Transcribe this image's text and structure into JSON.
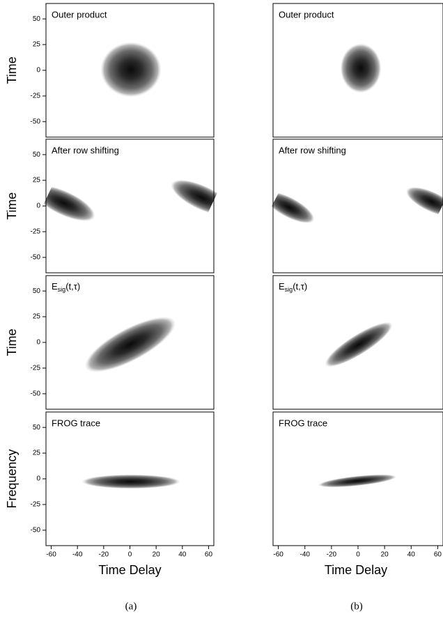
{
  "chart_data": [
    {
      "type": "heatmap",
      "title": "Outer product",
      "ylabel": "Time",
      "xlim": [
        -64,
        64
      ],
      "ylim": [
        -65,
        65
      ],
      "yticks": [
        50,
        25,
        0,
        -25,
        -50
      ]
    },
    {
      "type": "heatmap",
      "title": "Outer product",
      "xlim": [
        -64,
        64
      ],
      "ylim": [
        -65,
        65
      ]
    },
    {
      "type": "heatmap",
      "title": "After row shifting",
      "ylabel": "Time",
      "xlim": [
        -64,
        64
      ],
      "ylim": [
        -65,
        65
      ],
      "yticks": [
        50,
        25,
        0,
        -25,
        -50
      ]
    },
    {
      "type": "heatmap",
      "title": "After row shifting",
      "xlim": [
        -64,
        64
      ],
      "ylim": [
        -65,
        65
      ]
    },
    {
      "type": "heatmap",
      "title": [
        "E",
        "sig",
        "(t,τ)"
      ],
      "ylabel": "Time",
      "xlim": [
        -64,
        64
      ],
      "ylim": [
        -65,
        65
      ],
      "yticks": [
        50,
        25,
        0,
        -25,
        -50
      ]
    },
    {
      "type": "heatmap",
      "title": [
        "E",
        "sig",
        "(t,τ)"
      ],
      "xlim": [
        -64,
        64
      ],
      "ylim": [
        -65,
        65
      ]
    },
    {
      "type": "heatmap",
      "title": "FROG trace",
      "ylabel": "Frequency",
      "xlabel": "Time Delay",
      "xlim": [
        -64,
        64
      ],
      "ylim": [
        -65,
        65
      ],
      "yticks": [
        50,
        25,
        0,
        -25,
        -50
      ],
      "xticks": [
        -60,
        -40,
        -20,
        0,
        20,
        40,
        60
      ]
    },
    {
      "type": "heatmap",
      "title": "FROG trace",
      "xlabel": "Time Delay",
      "xlim": [
        -64,
        64
      ],
      "ylim": [
        -65,
        65
      ],
      "xticks": [
        -60,
        -40,
        -20,
        0,
        20,
        40,
        60
      ]
    }
  ],
  "captions": [
    "(a)",
    "(b)"
  ]
}
